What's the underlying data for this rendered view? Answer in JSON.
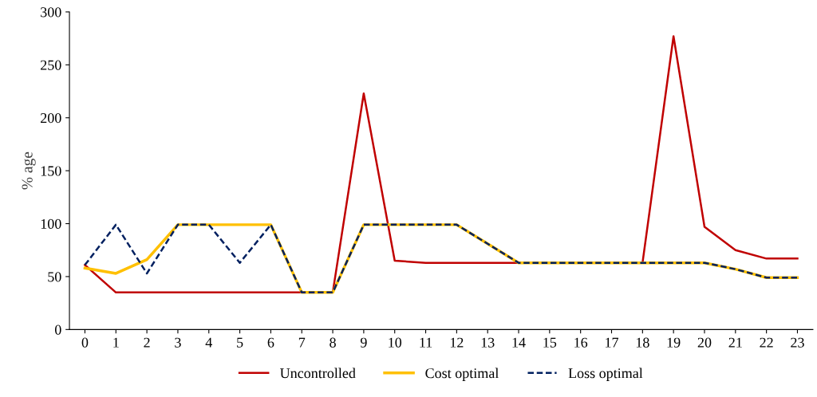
{
  "chart_data": {
    "type": "line",
    "ylabel": "% age",
    "categories": [
      "0",
      "1",
      "2",
      "3",
      "4",
      "5",
      "6",
      "7",
      "8",
      "9",
      "10",
      "11",
      "12",
      "13",
      "14",
      "15",
      "16",
      "17",
      "18",
      "19",
      "20",
      "21",
      "22",
      "23"
    ],
    "series": [
      {
        "name": "Uncontrolled",
        "color": "#c00000",
        "line_style": "solid",
        "values": [
          61,
          35,
          35,
          35,
          35,
          35,
          35,
          35,
          35,
          223,
          65,
          63,
          63,
          63,
          63,
          63,
          63,
          63,
          63,
          277,
          97,
          75,
          67,
          67
        ]
      },
      {
        "name": "Cost optimal",
        "color": "#ffc000",
        "line_style": "solid",
        "values": [
          58,
          53,
          66,
          99,
          99,
          99,
          99,
          35,
          35,
          99,
          99,
          99,
          99,
          81,
          63,
          63,
          63,
          63,
          63,
          63,
          63,
          57,
          49,
          49
        ]
      },
      {
        "name": "Loss optimal",
        "color": "#002060",
        "line_style": "dashed",
        "values": [
          61,
          99,
          53,
          99,
          99,
          63,
          99,
          35,
          35,
          99,
          99,
          99,
          99,
          81,
          63,
          63,
          63,
          63,
          63,
          63,
          63,
          57,
          49,
          49
        ]
      }
    ],
    "ylim": [
      0,
      300
    ],
    "yticks": [
      0,
      50,
      100,
      150,
      200,
      250,
      300
    ],
    "grid": false,
    "legend": "bottom",
    "marker": "none"
  }
}
